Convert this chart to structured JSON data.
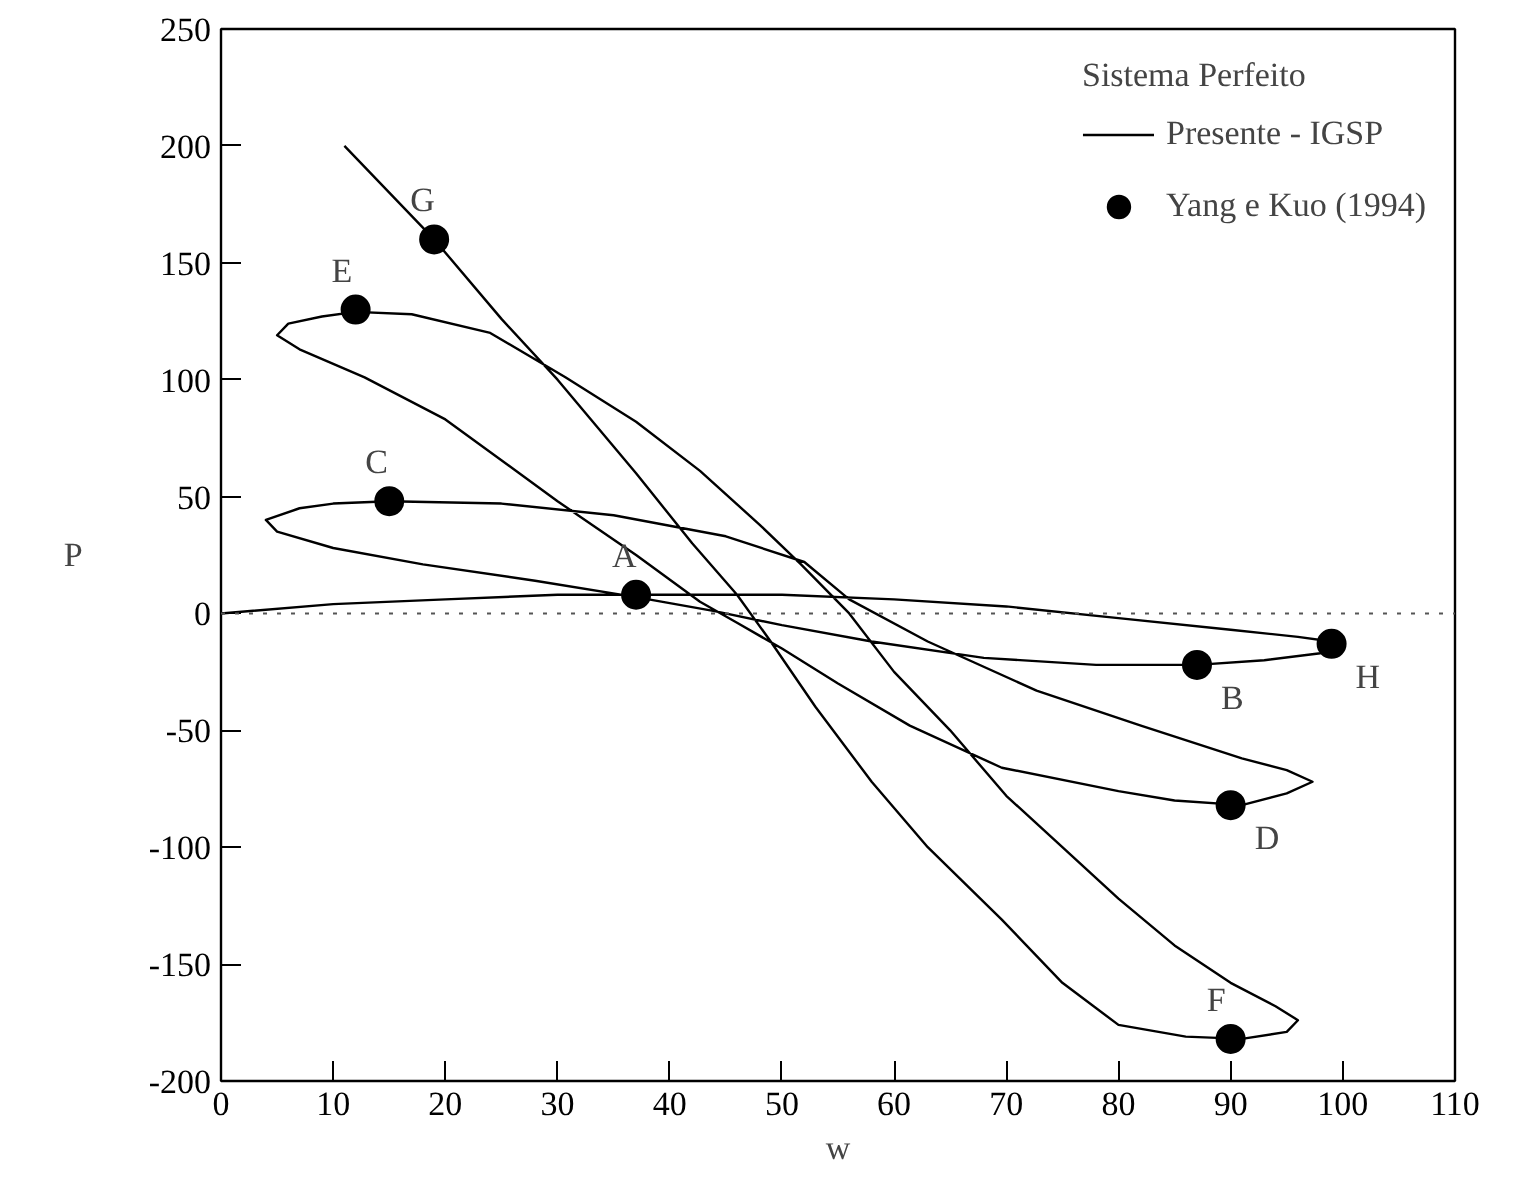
{
  "chart_data": {
    "type": "line",
    "xlabel": "w",
    "ylabel": "P",
    "legend_title": "Sistema Perfeito",
    "legend": "top right",
    "xlim": [
      0,
      110
    ],
    "ylim": [
      -200,
      250
    ],
    "xticks": [
      0,
      10,
      20,
      30,
      40,
      50,
      60,
      70,
      80,
      90,
      100,
      110
    ],
    "yticks": [
      -200,
      -150,
      -100,
      -50,
      0,
      50,
      100,
      150,
      200,
      250
    ],
    "grid": false,
    "ref_lines": [
      {
        "axis": "y",
        "value": 0,
        "line_style": "dotted",
        "color": "#555555"
      }
    ],
    "series": [
      {
        "name": "Presente - IGSP",
        "color": "#000000",
        "marker": "none",
        "line_style": "solid",
        "x": [
          0,
          10,
          20,
          30,
          37,
          50,
          60,
          70,
          80,
          90,
          96,
          99,
          100,
          98,
          93,
          87,
          78,
          68,
          58,
          50,
          44,
          37,
          28,
          18,
          10,
          5,
          4,
          7,
          10,
          15,
          25,
          35,
          45,
          52,
          56,
          63,
          72.7,
          82,
          91,
          95,
          97.3,
          95,
          91,
          85,
          80,
          69.6,
          61.4,
          55,
          50,
          46,
          42.7,
          37,
          30,
          20,
          12.8,
          7,
          5,
          6,
          9,
          12,
          17,
          24,
          30.7,
          37,
          42.7,
          48,
          51.7,
          56,
          60,
          65,
          70,
          75,
          80,
          85,
          90,
          94,
          96,
          95,
          91,
          86,
          80,
          75,
          69.6,
          63,
          58,
          53,
          49,
          46,
          42,
          37,
          30,
          25,
          19,
          15,
          11
        ],
        "values": [
          0,
          4,
          6,
          8,
          8,
          8,
          6,
          3,
          -2,
          -7,
          -10,
          -12,
          -14,
          -17,
          -20,
          -22,
          -22,
          -19,
          -12,
          -5,
          1,
          7,
          14,
          21,
          28,
          35,
          40,
          45,
          47,
          48,
          47,
          42,
          33,
          22,
          6,
          -12,
          -33,
          -48,
          -62,
          -67,
          -72,
          -77,
          -82,
          -80,
          -76,
          -66,
          -48,
          -30,
          -15,
          -4,
          5,
          25,
          48,
          83,
          101,
          113,
          119,
          124,
          127,
          129,
          128,
          120,
          101,
          82,
          61,
          38,
          21,
          0,
          -25,
          -50,
          -78,
          -100,
          -122,
          -142,
          -158,
          -168,
          -174,
          -179,
          -182,
          -181,
          -176,
          -158,
          -131,
          -100,
          -72,
          -40,
          -12,
          8,
          30,
          60,
          100,
          126,
          160,
          180,
          200
        ]
      },
      {
        "name": "Yang e Kuo (1994)",
        "type": "scatter",
        "color": "#000000",
        "marker": "circle",
        "x": [
          37,
          87,
          15,
          90,
          12,
          90,
          19,
          99
        ],
        "values": [
          8,
          -22,
          48,
          -82,
          130,
          -182,
          160,
          -13
        ]
      }
    ],
    "annotations": [
      {
        "text": "A",
        "x": 37,
        "y": 8
      },
      {
        "text": "B",
        "x": 87,
        "y": -22
      },
      {
        "text": "C",
        "x": 15,
        "y": 48
      },
      {
        "text": "D",
        "x": 90,
        "y": -82
      },
      {
        "text": "E",
        "x": 12,
        "y": 130
      },
      {
        "text": "F",
        "x": 90,
        "y": -182
      },
      {
        "text": "G",
        "x": 19,
        "y": 160
      },
      {
        "text": "H",
        "x": 99,
        "y": -13
      }
    ]
  }
}
